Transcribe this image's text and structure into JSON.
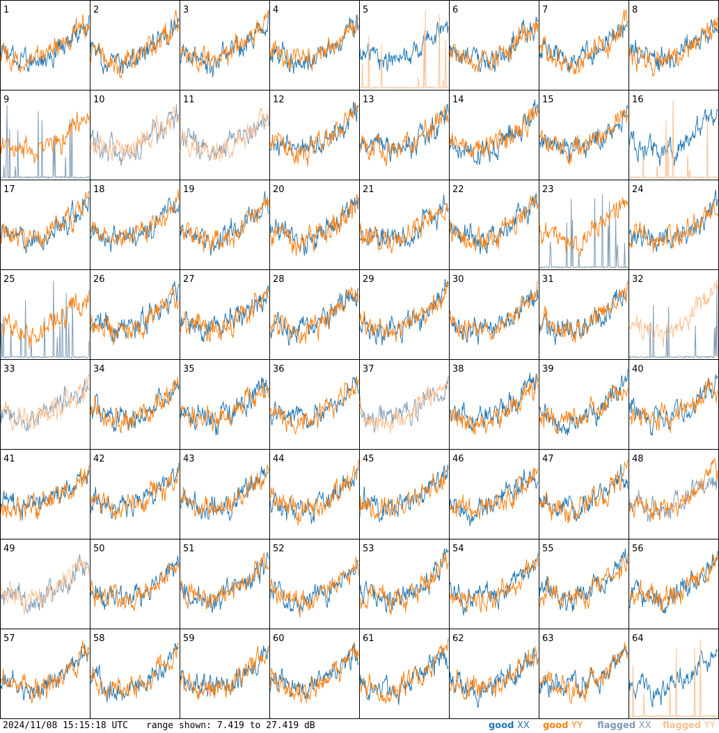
{
  "chart_data": {
    "type": "line",
    "layout": "8x8 grid of small multiples (antennas 1-64)",
    "panels": [
      {
        "label": "1",
        "xx": "good",
        "yy": "good"
      },
      {
        "label": "2",
        "xx": "good",
        "yy": "good"
      },
      {
        "label": "3",
        "xx": "good",
        "yy": "good"
      },
      {
        "label": "4",
        "xx": "good",
        "yy": "good"
      },
      {
        "label": "5",
        "xx": "good",
        "yy": "flagged"
      },
      {
        "label": "6",
        "xx": "good",
        "yy": "good"
      },
      {
        "label": "7",
        "xx": "good",
        "yy": "good"
      },
      {
        "label": "8",
        "xx": "good",
        "yy": "good"
      },
      {
        "label": "9",
        "xx": "flagged",
        "yy": "good"
      },
      {
        "label": "10",
        "xx": "flagged",
        "yy": "flagged"
      },
      {
        "label": "11",
        "xx": "flagged",
        "yy": "flagged"
      },
      {
        "label": "12",
        "xx": "good",
        "yy": "good"
      },
      {
        "label": "13",
        "xx": "good",
        "yy": "good"
      },
      {
        "label": "14",
        "xx": "good",
        "yy": "good"
      },
      {
        "label": "15",
        "xx": "good",
        "yy": "good"
      },
      {
        "label": "16",
        "xx": "good",
        "yy": "flagged"
      },
      {
        "label": "17",
        "xx": "good",
        "yy": "good"
      },
      {
        "label": "18",
        "xx": "good",
        "yy": "good"
      },
      {
        "label": "19",
        "xx": "good",
        "yy": "good"
      },
      {
        "label": "20",
        "xx": "good",
        "yy": "good"
      },
      {
        "label": "21",
        "xx": "good",
        "yy": "good"
      },
      {
        "label": "22",
        "xx": "good",
        "yy": "good"
      },
      {
        "label": "23",
        "xx": "flagged",
        "yy": "good"
      },
      {
        "label": "24",
        "xx": "good",
        "yy": "good"
      },
      {
        "label": "25",
        "xx": "flagged",
        "yy": "good"
      },
      {
        "label": "26",
        "xx": "good",
        "yy": "good"
      },
      {
        "label": "27",
        "xx": "good",
        "yy": "good"
      },
      {
        "label": "28",
        "xx": "good",
        "yy": "good"
      },
      {
        "label": "29",
        "xx": "good",
        "yy": "good"
      },
      {
        "label": "30",
        "xx": "good",
        "yy": "good"
      },
      {
        "label": "31",
        "xx": "good",
        "yy": "good"
      },
      {
        "label": "32",
        "xx": "flagged",
        "yy": "flagged"
      },
      {
        "label": "33",
        "xx": "flagged",
        "yy": "flagged"
      },
      {
        "label": "34",
        "xx": "good",
        "yy": "good"
      },
      {
        "label": "35",
        "xx": "good",
        "yy": "good"
      },
      {
        "label": "36",
        "xx": "good",
        "yy": "good"
      },
      {
        "label": "37",
        "xx": "flagged",
        "yy": "flagged"
      },
      {
        "label": "38",
        "xx": "good",
        "yy": "good"
      },
      {
        "label": "39",
        "xx": "good",
        "yy": "good"
      },
      {
        "label": "40",
        "xx": "good",
        "yy": "good"
      },
      {
        "label": "41",
        "xx": "good",
        "yy": "good"
      },
      {
        "label": "42",
        "xx": "good",
        "yy": "good"
      },
      {
        "label": "43",
        "xx": "good",
        "yy": "good"
      },
      {
        "label": "44",
        "xx": "good",
        "yy": "good"
      },
      {
        "label": "45",
        "xx": "good",
        "yy": "good"
      },
      {
        "label": "46",
        "xx": "good",
        "yy": "good"
      },
      {
        "label": "47",
        "xx": "good",
        "yy": "good"
      },
      {
        "label": "48",
        "xx": "flagged",
        "yy": "good"
      },
      {
        "label": "49",
        "xx": "flagged",
        "yy": "flagged"
      },
      {
        "label": "50",
        "xx": "good",
        "yy": "good"
      },
      {
        "label": "51",
        "xx": "good",
        "yy": "good"
      },
      {
        "label": "52",
        "xx": "good",
        "yy": "good"
      },
      {
        "label": "53",
        "xx": "good",
        "yy": "good"
      },
      {
        "label": "54",
        "xx": "good",
        "yy": "good"
      },
      {
        "label": "55",
        "xx": "good",
        "yy": "good"
      },
      {
        "label": "56",
        "xx": "good",
        "yy": "good"
      },
      {
        "label": "57",
        "xx": "good",
        "yy": "good"
      },
      {
        "label": "58",
        "xx": "good",
        "yy": "good"
      },
      {
        "label": "59",
        "xx": "good",
        "yy": "good"
      },
      {
        "label": "60",
        "xx": "good",
        "yy": "good"
      },
      {
        "label": "61",
        "xx": "good",
        "yy": "good"
      },
      {
        "label": "62",
        "xx": "good",
        "yy": "good"
      },
      {
        "label": "63",
        "xx": "good",
        "yy": "good"
      },
      {
        "label": "64",
        "xx": "good",
        "yy": "flagged"
      }
    ],
    "y_range_db": [
      7.419,
      27.419
    ],
    "legend": [
      "good XX",
      "good YY",
      "flagged XX",
      "flagged YY"
    ],
    "colors": {
      "good_xx": "#1f77b4",
      "good_yy": "#ff7f0e",
      "flagged_xx": "#7f9bb5",
      "flagged_yy": "#fdbf8f"
    }
  },
  "footer": {
    "timestamp": "2024/11/08 15:15:18 UTC",
    "range_text": "range shown: 7.419 to 27.419 dB",
    "legend": {
      "good_xx_a": "good ",
      "good_xx_b": "XX",
      "good_yy_a": "good ",
      "good_yy_b": "YY",
      "flagged_xx_a": "flagged ",
      "flagged_xx_b": "XX",
      "flagged_yy_a": "flagged ",
      "flagged_yy_b": "YY"
    }
  }
}
